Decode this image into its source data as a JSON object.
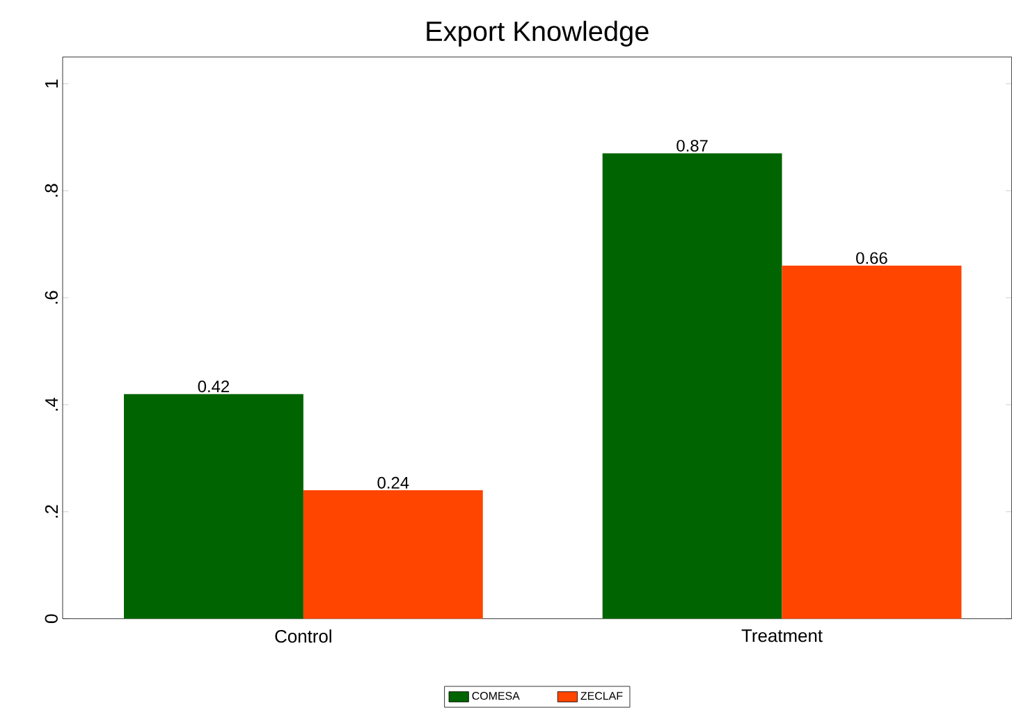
{
  "chart_data": {
    "type": "bar",
    "title": "Export Knowledge",
    "categories": [
      "Control",
      "Treatment"
    ],
    "series": [
      {
        "name": "COMESA",
        "color": "#006400",
        "values": [
          0.42,
          0.87
        ]
      },
      {
        "name": "ZECLAF",
        "color": "#ff4500",
        "values": [
          0.24,
          0.66
        ]
      }
    ],
    "ylim": [
      0,
      1.05
    ],
    "yticks": [
      0,
      {
        "value": 0.2,
        "label": ".2"
      },
      {
        "value": 0.4,
        "label": ".4"
      },
      {
        "value": 0.6,
        "label": ".6"
      },
      {
        "value": 0.8,
        "label": ".8"
      },
      1
    ],
    "data_labels": true,
    "legend": "bottom",
    "grid": false
  }
}
